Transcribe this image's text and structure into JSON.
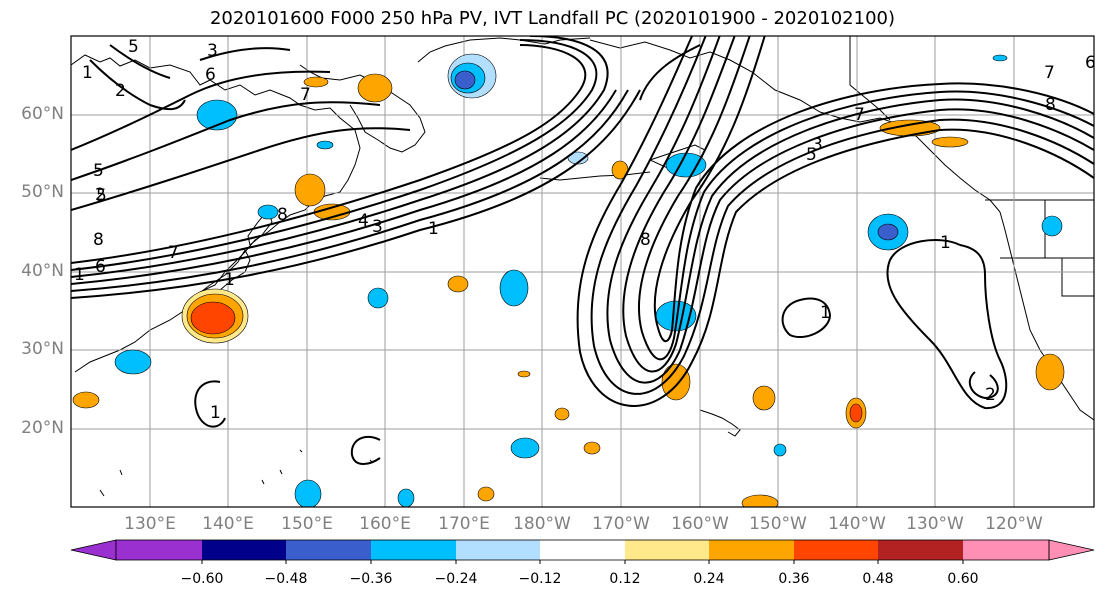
{
  "title": "2020101600 F000 250 hPa PV, IVT Landfall PC (2020101900 - 2020102100)",
  "lat_labels": [
    "60°N",
    "50°N",
    "40°N",
    "30°N",
    "20°N"
  ],
  "lon_labels": [
    "130°E",
    "140°E",
    "150°E",
    "160°E",
    "170°E",
    "180°W",
    "170°W",
    "160°W",
    "150°W",
    "140°W",
    "130°W",
    "120°W"
  ],
  "colorbar": {
    "ticks": [
      "−0.60",
      "−0.48",
      "−0.36",
      "−0.24",
      "−0.12",
      "0.12",
      "0.24",
      "0.36",
      "0.48",
      "0.60"
    ],
    "colors": [
      "#9b30d0",
      "#00008b",
      "#3a5fcd",
      "#00bfff",
      "#b2dfff",
      "#ffffff",
      "#ffe98a",
      "#ffa500",
      "#ff4500",
      "#b22222",
      "#ff8fb4"
    ]
  },
  "contour_labels": [
    "5",
    "3",
    "1",
    "2",
    "6",
    "7",
    "5",
    "2",
    "5",
    "8",
    "7",
    "6",
    "1",
    "4",
    "3",
    "1",
    "8",
    "1",
    "8",
    "5",
    "3",
    "7",
    "1",
    "1",
    "1",
    "2",
    "7",
    "6",
    "8"
  ]
}
